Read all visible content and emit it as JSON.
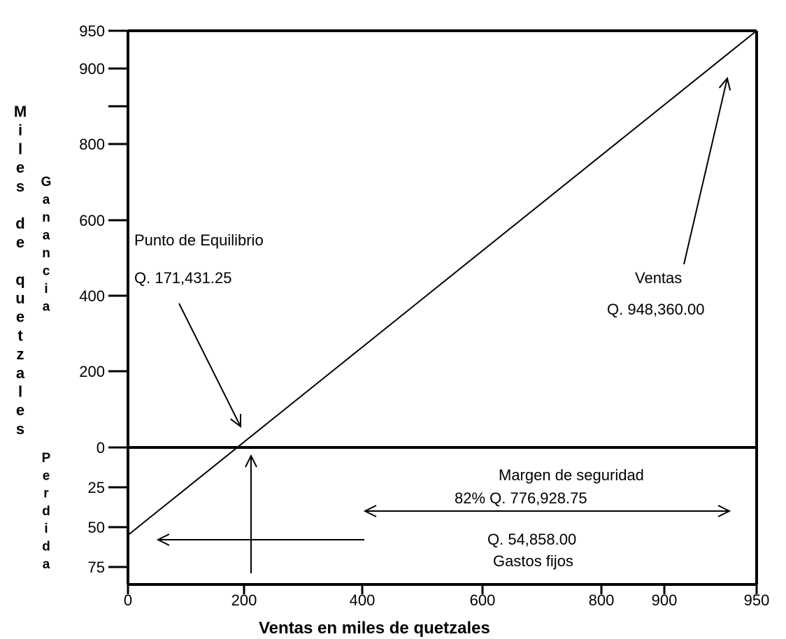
{
  "chart_data": {
    "type": "line",
    "xlabel": "Ventas en miles de quetzales",
    "ylabel": "Miles de quetzales",
    "ylabel_upper": "Ganancia",
    "ylabel_lower": "Perdida",
    "x_ticks": [
      "0",
      "200",
      "400",
      "600",
      "800",
      "900",
      "950"
    ],
    "y_ticks_upper": [
      "950",
      "900",
      "800",
      "600",
      "400",
      "200",
      "0"
    ],
    "y_ticks_lower": [
      "25",
      "50",
      "75"
    ],
    "series": [
      {
        "x": [
          0,
          950
        ],
        "y": [
          -55,
          950
        ]
      }
    ],
    "annotations": {
      "break_even_title": "Punto de Equilibrio",
      "break_even_value": "Q. 171,431.25",
      "sales_title": "Ventas",
      "sales_value": "Q. 948,360.00",
      "margin_title": "Margen de seguridad",
      "margin_value": "82%  Q. 776,928.75",
      "fixed_costs_value": "Q. 54,858.00",
      "fixed_costs_title": "Gastos fijos"
    }
  }
}
